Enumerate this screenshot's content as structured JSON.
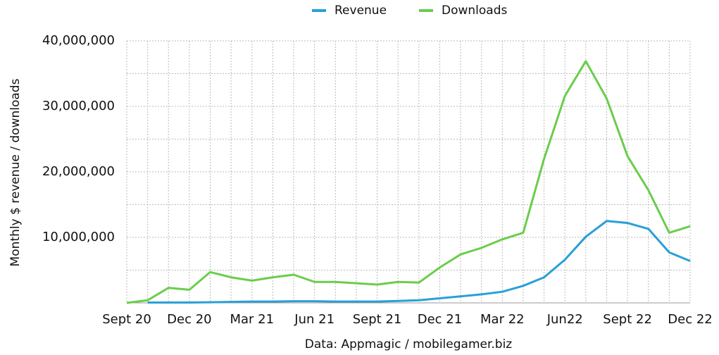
{
  "chart_data": {
    "type": "line",
    "y_label": "Monthly $ revenue / downloads",
    "source": "Data: Appmagic / mobilegamer.biz",
    "categories": [
      "Sept 20",
      null,
      null,
      "Dec 20",
      null,
      null,
      "Mar 21",
      null,
      null,
      "Jun 21",
      null,
      null,
      "Sept 21",
      null,
      null,
      "Dec 21",
      null,
      null,
      "Mar 22",
      null,
      null,
      "Jun22",
      null,
      null,
      "Sept 22",
      null,
      null,
      "Dec 22"
    ],
    "series": [
      {
        "name": "Revenue",
        "color": "#2a9fd8",
        "values": [
          null,
          50000,
          50000,
          50000,
          100000,
          150000,
          200000,
          200000,
          250000,
          250000,
          200000,
          200000,
          200000,
          300000,
          400000,
          700000,
          1000000,
          1300000,
          1700000,
          2600000,
          3900000,
          6600000,
          10100000,
          12500000,
          12200000,
          11300000,
          7700000,
          6400000
        ]
      },
      {
        "name": "Downloads",
        "color": "#6acd4b",
        "values": [
          0,
          400000,
          2300000,
          2000000,
          4700000,
          3900000,
          3400000,
          3900000,
          4300000,
          3200000,
          3200000,
          3000000,
          2800000,
          3200000,
          3100000,
          5400000,
          7400000,
          8400000,
          9700000,
          10700000,
          22000000,
          31600000,
          36900000,
          31200000,
          22400000,
          17200000,
          10700000,
          11700000
        ]
      }
    ],
    "ylim": [
      0,
      40000000
    ],
    "yticks": [
      {
        "value": 10000000,
        "label": "10,000,000"
      },
      {
        "value": 20000000,
        "label": "20,000,000"
      },
      {
        "value": 30000000,
        "label": "30,000,000"
      },
      {
        "value": 40000000,
        "label": "40,000,000"
      }
    ],
    "minor_yticks": [
      5000000,
      15000000,
      25000000,
      35000000
    ],
    "grid": true,
    "legend": "top"
  }
}
